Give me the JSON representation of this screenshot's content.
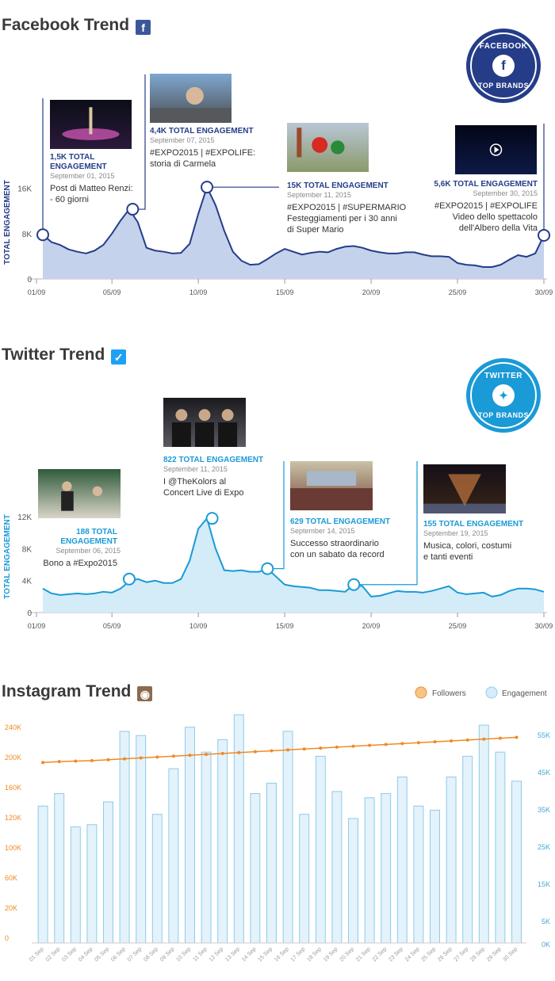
{
  "facebook": {
    "title": "Facebook Trend",
    "icon": "facebook-icon",
    "badge": {
      "top": "FACEBOOK",
      "bottom": "TOP BRANDS",
      "icon": "f"
    },
    "color": "#253d88",
    "fill": "#c5d2ec",
    "chart_data": {
      "type": "area",
      "ylabel": "TOTAL ENGAGEMENT",
      "ylim": [
        0,
        20000
      ],
      "y_ticks": [
        "0",
        "8K",
        "16K"
      ],
      "y_tick_values": [
        0,
        8000,
        16000
      ],
      "x_tick_labels": [
        "01/09",
        "05/09",
        "10/09",
        "15/09",
        "20/09",
        "25/09",
        "30/09"
      ],
      "x_tick_days": [
        1,
        5,
        10,
        15,
        20,
        25,
        30
      ],
      "x": [
        1,
        1.5,
        2,
        2.5,
        3,
        3.5,
        4,
        4.5,
        5,
        5.5,
        6,
        6.5,
        7,
        7.5,
        8,
        8.5,
        9,
        9.5,
        10,
        10.5,
        11,
        11.5,
        12,
        12.5,
        13,
        13.5,
        14,
        14.5,
        15,
        15.5,
        16,
        16.5,
        17,
        17.5,
        18,
        18.5,
        19,
        19.5,
        20,
        20.5,
        21,
        21.5,
        22,
        22.5,
        23,
        23.5,
        24,
        24.5,
        25,
        25.5,
        26,
        26.5,
        27,
        27.5,
        28,
        28.5,
        29,
        29.5,
        30
      ],
      "values": [
        7800,
        6500,
        6000,
        5200,
        4800,
        4500,
        5000,
        6000,
        8000,
        10300,
        12300,
        10000,
        5500,
        5000,
        4800,
        4500,
        4600,
        6200,
        11500,
        16200,
        13000,
        8500,
        4800,
        3200,
        2500,
        2600,
        3500,
        4500,
        5300,
        4800,
        4300,
        4600,
        4800,
        4700,
        5300,
        5700,
        5800,
        5500,
        5000,
        4700,
        4500,
        4500,
        4700,
        4700,
        4300,
        4000,
        4000,
        3900,
        2800,
        2500,
        2400,
        2100,
        2100,
        2500,
        3400,
        4200,
        3900,
        4500,
        7700
      ]
    },
    "annotations": [
      {
        "day": 1,
        "value": 7800,
        "engagement": "1,5K TOTAL ENGAGEMENT",
        "date": "September 01, 2015",
        "text": "Post di Matteo Renzi:\n- 60 giorni",
        "img": "photo-fountain-night"
      },
      {
        "day": 6.2,
        "value": 12300,
        "engagement": "4,4K TOTAL ENGAGEMENT",
        "date": "September 07, 2015",
        "text": "#EXPO2015 | #EXPOLIFE:\nstoria di Carmela",
        "img": "photo-visitor-selfie"
      },
      {
        "day": 10.5,
        "value": 16200,
        "engagement": "15K TOTAL ENGAGEMENT",
        "date": "September 11, 2015",
        "text": "#EXPO2015 | #SUPERMARIO\nFesteggiamenti per i 30 anni\ndi Super Mario",
        "img": "photo-super-mario"
      },
      {
        "day": 30,
        "value": 7700,
        "engagement": "5,6K TOTAL ENGAGEMENT",
        "date": "September 30, 2015",
        "text": "#EXPO2015 | #EXPOLIFE\nVideo dello spettacolo\ndell'Albero della Vita",
        "img": "video-tree-of-life"
      }
    ]
  },
  "twitter": {
    "title": "Twitter Trend",
    "icon": "twitter-icon",
    "badge": {
      "top": "TWITTER",
      "bottom": "TOP BRANDS",
      "icon": "bird"
    },
    "color": "#1a9ad6",
    "fill": "#d3ecf8",
    "chart_data": {
      "type": "area",
      "ylabel": "TOTAL ENGAGEMENT",
      "ylim": [
        0,
        14000
      ],
      "y_ticks": [
        "0",
        "4K",
        "8K",
        "12K"
      ],
      "y_tick_values": [
        0,
        4000,
        8000,
        12000
      ],
      "x_tick_labels": [
        "01/09",
        "05/09",
        "10/09",
        "15/09",
        "20/09",
        "25/09",
        "30/09"
      ],
      "x_tick_days": [
        1,
        5,
        10,
        15,
        20,
        25,
        30
      ],
      "x": [
        1,
        1.5,
        2,
        2.5,
        3,
        3.5,
        4,
        4.5,
        5,
        5.5,
        6,
        6.5,
        7,
        7.5,
        8,
        8.5,
        9,
        9.5,
        10,
        10.5,
        11,
        11.5,
        12,
        12.5,
        13,
        13.5,
        14,
        14.5,
        15,
        15.5,
        16,
        16.5,
        17,
        17.5,
        18,
        18.5,
        19,
        19.5,
        20,
        20.5,
        21,
        21.5,
        22,
        22.5,
        23,
        23.5,
        24,
        24.5,
        25,
        25.5,
        26,
        26.5,
        27,
        27.5,
        28,
        28.5,
        29,
        29.5,
        30
      ],
      "values": [
        3000,
        2400,
        2200,
        2300,
        2400,
        2300,
        2400,
        2600,
        2500,
        3000,
        3900,
        4200,
        3800,
        4000,
        3700,
        3700,
        4200,
        6500,
        10500,
        11800,
        8000,
        5300,
        5200,
        5300,
        5100,
        5100,
        5500,
        4500,
        3500,
        3300,
        3200,
        3100,
        2800,
        2800,
        2700,
        2600,
        3500,
        3300,
        2000,
        2100,
        2400,
        2700,
        2600,
        2600,
        2500,
        2700,
        3000,
        3300,
        2500,
        2300,
        2400,
        2500,
        2000,
        2200,
        2700,
        3000,
        3000,
        2900,
        2600
      ]
    },
    "annotations": [
      {
        "day": 6,
        "value": 4200,
        "engagement": "188 TOTAL ENGAGEMENT",
        "date": "September 06, 2015",
        "text": "Bono a #Expo2015",
        "img": "photo-bono-interview"
      },
      {
        "day": 10.8,
        "value": 11800,
        "engagement": "822 TOTAL ENGAGEMENT",
        "date": "September 11, 2015",
        "text": "I @TheKolors al\nConcert Live di Expo",
        "img": "photo-the-kolors"
      },
      {
        "day": 14,
        "value": 5500,
        "engagement": "629 TOTAL ENGAGEMENT",
        "date": "September 14, 2015",
        "text": "Successo straordinario\ncon un sabato da record",
        "img": "photo-crowd-pavilion"
      },
      {
        "day": 19,
        "value": 3500,
        "engagement": "155 TOTAL ENGAGEMENT",
        "date": "September 19, 2015",
        "text": "Musica, colori, costumi\ne tanti eventi",
        "img": "photo-tree-of-life-show"
      }
    ]
  },
  "instagram": {
    "title": "Instagram Trend",
    "icon": "instagram-icon",
    "legend": [
      "Followers",
      "Engagement"
    ],
    "followers_color": "#f08a24",
    "engagement_color": "#8fcbe9",
    "chart_data": {
      "type": "bar",
      "categories": [
        "01 Sep",
        "02 Sep",
        "03 Sep",
        "04 Sep",
        "05 Sep",
        "06 Sep",
        "07 Sep",
        "08 Sep",
        "09 Sep",
        "10 Sep",
        "11 Sep",
        "12 Sep",
        "13 Sep",
        "14 Sep",
        "15 Sep",
        "16 Sep",
        "17 Sep",
        "18 Sep",
        "19 Sep",
        "20 Sep",
        "21 Sep",
        "22 Sep",
        "23 Sep",
        "24 Sep",
        "25 Sep",
        "26 Sep",
        "27 Sep",
        "28 Sep",
        "29 Sep",
        "30 Sep"
      ],
      "series": [
        {
          "name": "Engagement",
          "axis": "right",
          "type": "bar",
          "values": [
            33000,
            36000,
            28000,
            28500,
            34000,
            51000,
            50000,
            31000,
            42000,
            52000,
            46000,
            49000,
            55000,
            36000,
            38500,
            51000,
            31000,
            45000,
            36500,
            30000,
            35000,
            36000,
            40000,
            33000,
            32000,
            40000,
            45000,
            52500,
            46000,
            39000
          ]
        },
        {
          "name": "Followers",
          "axis": "left",
          "type": "line",
          "values": [
            201000,
            202000,
            202500,
            203000,
            204000,
            205000,
            206000,
            207000,
            208000,
            209000,
            210000,
            211000,
            212000,
            213000,
            214000,
            215000,
            216000,
            217000,
            218000,
            219000,
            220000,
            221000,
            222000,
            223000,
            224000,
            225000,
            226000,
            227000,
            228000,
            229000
          ]
        }
      ],
      "y_left_ticks": [
        "0",
        "20K",
        "60K",
        "100K",
        "120K",
        "160K",
        "200K",
        "240K"
      ],
      "y_right_ticks": [
        "0K",
        "5K",
        "15K",
        "25K",
        "35K",
        "45K",
        "55K"
      ],
      "left_ylim": [
        0,
        240000
      ],
      "right_ylim": [
        0,
        55000
      ],
      "legend_position": "top-right"
    }
  }
}
